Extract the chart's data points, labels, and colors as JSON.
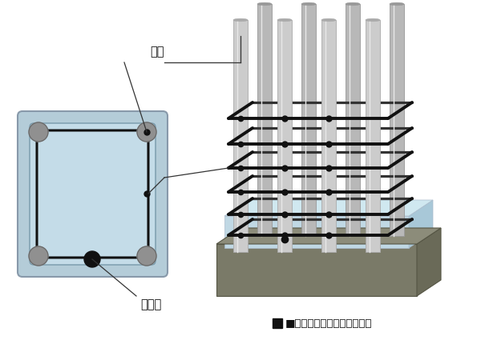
{
  "bg_color": "#ffffff",
  "title_text": "■溶接閉鎖型フープ筋概念図",
  "label_shukkin": "主筋",
  "label_obikkin": "帯筋",
  "label_yosetsubu": "溶接部",
  "col_front_color": "#b8d4dc",
  "col_right_color": "#98b8c8",
  "col_top_color": "#c8e0e8",
  "base_front_color": "#7a7a68",
  "base_side_color": "#6a6a58",
  "base_top_color": "#8c8c7a",
  "rebar_light": "#c8c8c8",
  "rebar_dark": "#a8a8a8",
  "hoop_color": "#111111",
  "node_color": "#111111",
  "cs_outer_color": "#b0c8d4",
  "cs_inner_color": "#c0dce8",
  "cs_rebar_color": "#888888",
  "weld_color": "#111111",
  "line_color": "#333333"
}
